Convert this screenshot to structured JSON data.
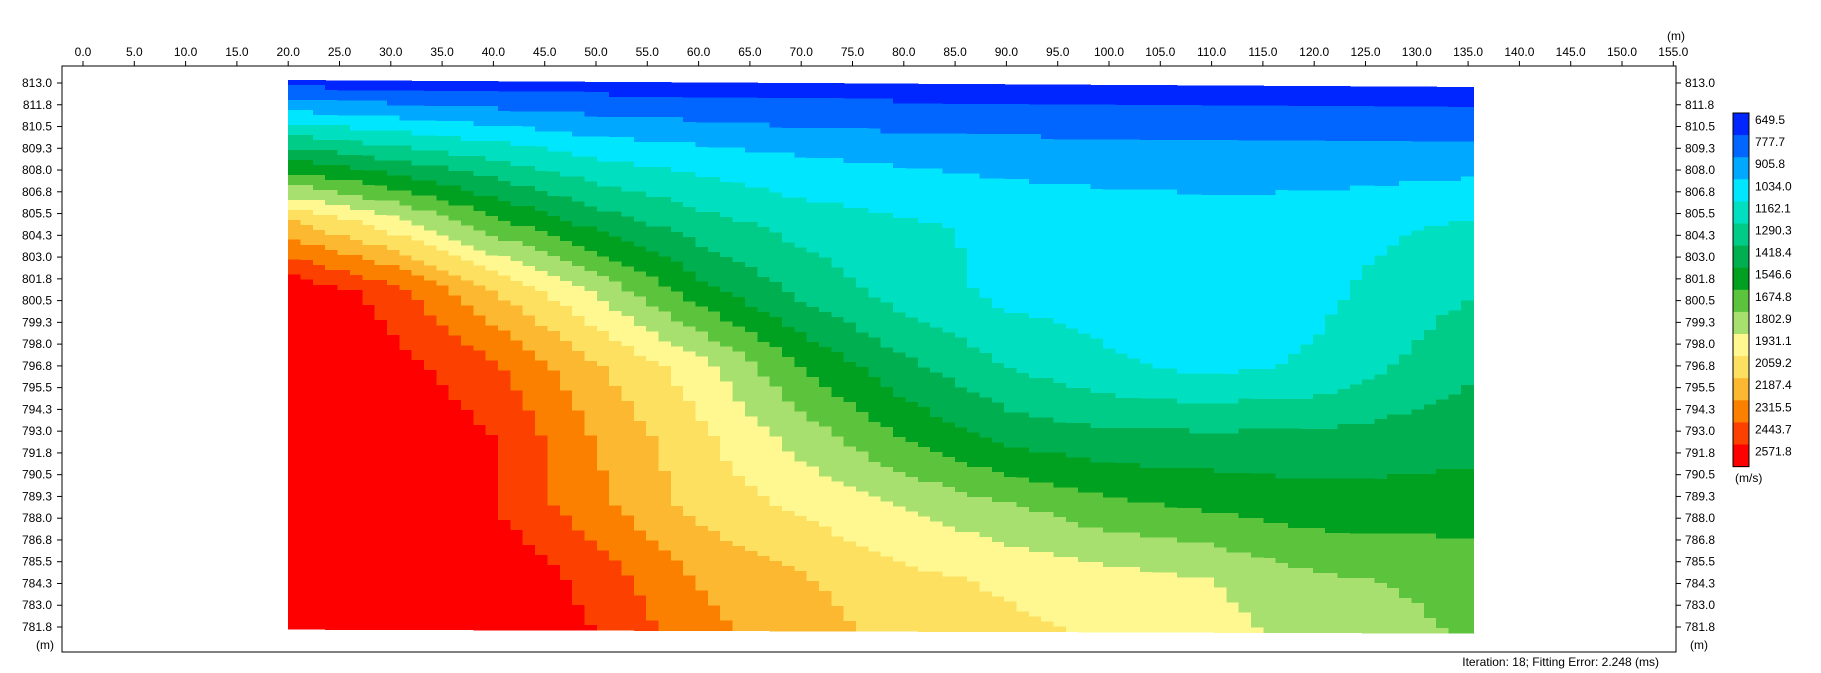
{
  "chart_data": {
    "type": "heatmap",
    "title": "",
    "x_unit": "(m)",
    "y_unit_left": "(m)",
    "y_unit_right": "(m)",
    "xlim": [
      0.0,
      155.0
    ],
    "ylim": [
      781.8,
      813.0
    ],
    "x_ticks": [
      "0.0",
      "5.0",
      "10.0",
      "15.0",
      "20.0",
      "25.0",
      "30.0",
      "35.0",
      "40.0",
      "45.0",
      "50.0",
      "55.0",
      "60.0",
      "65.0",
      "70.0",
      "75.0",
      "80.0",
      "85.0",
      "90.0",
      "95.0",
      "100.0",
      "105.0",
      "110.0",
      "115.0",
      "120.0",
      "125.0",
      "130.0",
      "135.0",
      "140.0",
      "145.0",
      "150.0",
      "155.0"
    ],
    "y_ticks": [
      "813.0",
      "811.8",
      "810.5",
      "809.3",
      "808.0",
      "806.8",
      "805.5",
      "804.3",
      "803.0",
      "801.8",
      "800.5",
      "799.3",
      "798.0",
      "796.8",
      "795.5",
      "794.3",
      "793.0",
      "791.8",
      "790.5",
      "789.3",
      "788.0",
      "786.8",
      "785.5",
      "784.3",
      "783.0",
      "781.8"
    ],
    "data_extent_x": [
      20.0,
      135.5
    ],
    "colorbar": {
      "unit": "(m/s)",
      "levels": [
        "649.5",
        "777.7",
        "905.8",
        "1034.0",
        "1162.1",
        "1290.3",
        "1418.4",
        "1546.6",
        "1674.8",
        "1802.9",
        "1931.1",
        "2059.2",
        "2187.4",
        "2315.5",
        "2443.7",
        "2571.8"
      ],
      "values": [
        649.5,
        777.7,
        905.8,
        1034.0,
        1162.1,
        1290.3,
        1418.4,
        1546.6,
        1674.8,
        1802.9,
        1931.1,
        2059.2,
        2187.4,
        2315.5,
        2443.7,
        2571.8
      ],
      "colors": [
        "#0026ff",
        "#0066ff",
        "#00a8ff",
        "#00e6ff",
        "#00e0c0",
        "#00cc88",
        "#00b050",
        "#00a020",
        "#5cc43c",
        "#a8e070",
        "#fff890",
        "#fde060",
        "#fcb830",
        "#fb8000",
        "#fb4000",
        "#ff0000"
      ]
    },
    "velocity_grid": {
      "x": [
        20,
        30,
        40,
        50,
        60,
        70,
        80,
        90,
        100,
        110,
        120,
        135
      ],
      "depth_from_top": [
        0,
        4,
        8,
        12,
        16,
        20,
        24,
        28,
        31
      ],
      "values": [
        [
          700,
          700,
          700,
          700,
          700,
          700,
          700,
          700,
          700,
          700,
          700,
          700
        ],
        [
          1400,
          1300,
          1200,
          1100,
          1050,
          1000,
          980,
          960,
          950,
          940,
          940,
          950
        ],
        [
          2100,
          1900,
          1650,
          1450,
          1300,
          1200,
          1150,
          1100,
          1080,
          1070,
          1080,
          1150
        ],
        [
          2571,
          2400,
          2100,
          1850,
          1550,
          1350,
          1200,
          1100,
          1080,
          1060,
          1100,
          1250
        ],
        [
          2571,
          2500,
          2350,
          2100,
          1900,
          1600,
          1400,
          1250,
          1150,
          1100,
          1150,
          1350
        ],
        [
          2571,
          2571,
          2450,
          2200,
          2000,
          1800,
          1600,
          1450,
          1400,
          1400,
          1400,
          1450
        ],
        [
          2571,
          2571,
          2450,
          2250,
          2050,
          1950,
          1850,
          1750,
          1650,
          1600,
          1550,
          1550
        ],
        [
          2571,
          2571,
          2571,
          2400,
          2200,
          2100,
          2000,
          1950,
          1900,
          1850,
          1750,
          1700
        ],
        [
          2571,
          2571,
          2571,
          2450,
          2250,
          2150,
          2050,
          2000,
          1950,
          1900,
          1800,
          1720
        ]
      ]
    }
  },
  "footer": {
    "status": "Iteration: 18; Fitting Error: 2.248 (ms)"
  }
}
